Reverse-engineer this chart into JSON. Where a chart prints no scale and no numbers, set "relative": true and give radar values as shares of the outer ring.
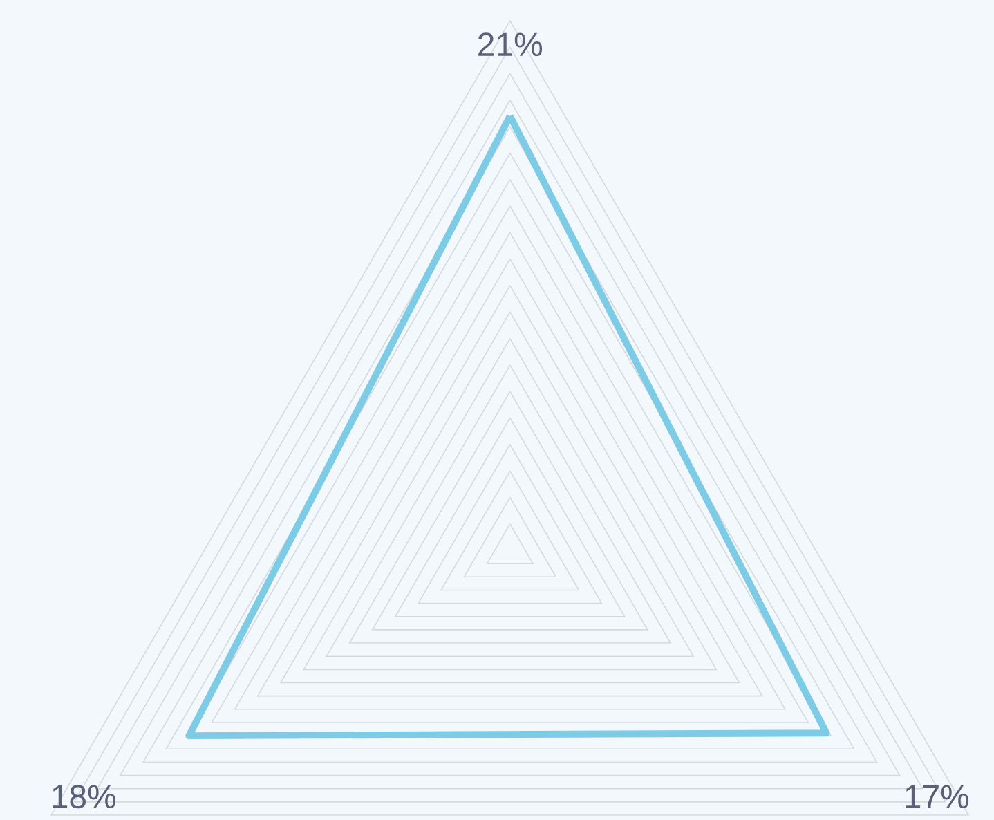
{
  "chart_data": {
    "type": "radar",
    "relative": true,
    "grid": true,
    "categories": [
      "21%",
      "17%",
      "18%"
    ],
    "series": [
      {
        "color": "#7ecbe6",
        "values": [
          0.82,
          0.69,
          0.7
        ]
      }
    ]
  }
}
